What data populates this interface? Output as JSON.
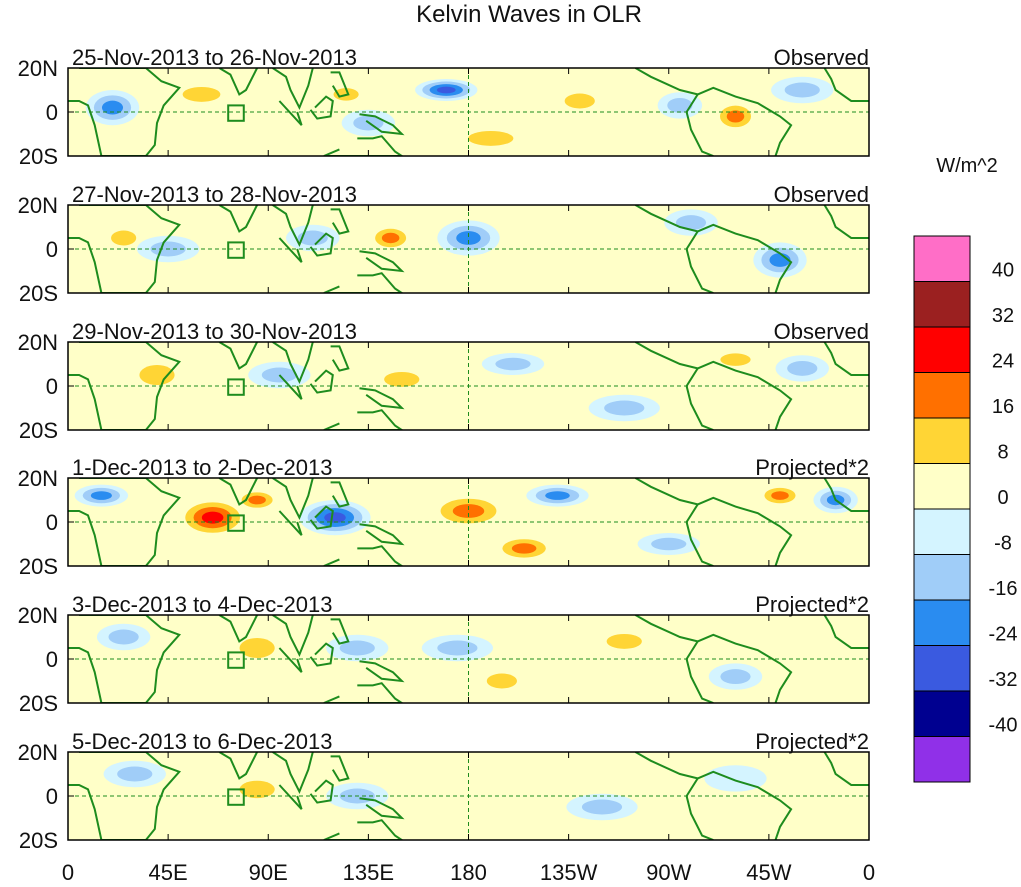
{
  "chart_data": {
    "type": "heatmap",
    "title": "Kelvin Waves in OLR",
    "units": "W/m^2",
    "x_ticks": [
      "0",
      "45E",
      "90E",
      "135E",
      "180",
      "135W",
      "90W",
      "45W",
      "0"
    ],
    "x_tick_lons": [
      0,
      45,
      90,
      135,
      180,
      225,
      270,
      315,
      360
    ],
    "y_ticks": [
      "20N",
      "0",
      "20S"
    ],
    "y_tick_lats": [
      20,
      0,
      -20
    ],
    "lat_range": [
      -20,
      20
    ],
    "lon_range": [
      0,
      360
    ],
    "colorbar": {
      "levels": [
        "40",
        "32",
        "24",
        "16",
        "8",
        "0",
        "-8",
        "-16",
        "-24",
        "-32",
        "-40"
      ],
      "colors": [
        "#ff6ec7",
        "#9b2020",
        "#ff0000",
        "#ff7000",
        "#ffd535",
        "#ffffc8",
        "#d4f4ff",
        "#a0cdf8",
        "#2a8cf0",
        "#3a5ae0",
        "#000090",
        "#9030e8"
      ]
    },
    "panels": [
      {
        "date_range": "25-Nov-2013 to 26-Nov-2013",
        "kind": "Observed",
        "blobs": [
          {
            "lon": 20,
            "lat": 2,
            "rx": 12,
            "ry": 8,
            "v": -20
          },
          {
            "lon": 60,
            "lat": 8,
            "rx": 15,
            "ry": 6,
            "v": 10
          },
          {
            "lon": 125,
            "lat": 8,
            "rx": 10,
            "ry": 5,
            "v": 12
          },
          {
            "lon": 135,
            "lat": -5,
            "rx": 12,
            "ry": 6,
            "v": -14
          },
          {
            "lon": 170,
            "lat": 10,
            "rx": 14,
            "ry": 5,
            "v": -28
          },
          {
            "lon": 190,
            "lat": -12,
            "rx": 18,
            "ry": 6,
            "v": 10
          },
          {
            "lon": 230,
            "lat": 5,
            "rx": 12,
            "ry": 6,
            "v": 10
          },
          {
            "lon": 275,
            "lat": 3,
            "rx": 10,
            "ry": 6,
            "v": -14
          },
          {
            "lon": 300,
            "lat": -2,
            "rx": 10,
            "ry": 7,
            "v": 24
          },
          {
            "lon": 330,
            "lat": 10,
            "rx": 14,
            "ry": 6,
            "v": -12
          }
        ]
      },
      {
        "date_range": "27-Nov-2013 to 28-Nov-2013",
        "kind": "Observed",
        "blobs": [
          {
            "lon": 25,
            "lat": 5,
            "rx": 10,
            "ry": 6,
            "v": 12
          },
          {
            "lon": 45,
            "lat": 0,
            "rx": 14,
            "ry": 6,
            "v": -16
          },
          {
            "lon": 110,
            "lat": 5,
            "rx": 12,
            "ry": 6,
            "v": -12
          },
          {
            "lon": 145,
            "lat": 5,
            "rx": 10,
            "ry": 6,
            "v": 18
          },
          {
            "lon": 180,
            "lat": 5,
            "rx": 14,
            "ry": 8,
            "v": -22
          },
          {
            "lon": 230,
            "lat": -8,
            "rx": 14,
            "ry": 7,
            "v": 8
          },
          {
            "lon": 280,
            "lat": 12,
            "rx": 12,
            "ry": 6,
            "v": -14
          },
          {
            "lon": 320,
            "lat": -5,
            "rx": 12,
            "ry": 8,
            "v": -20
          }
        ]
      },
      {
        "date_range": "29-Nov-2013 to 30-Nov-2013",
        "kind": "Observed",
        "blobs": [
          {
            "lon": 40,
            "lat": 5,
            "rx": 14,
            "ry": 8,
            "v": 14
          },
          {
            "lon": 95,
            "lat": 5,
            "rx": 14,
            "ry": 6,
            "v": -12
          },
          {
            "lon": 150,
            "lat": 3,
            "rx": 14,
            "ry": 6,
            "v": 16
          },
          {
            "lon": 200,
            "lat": 10,
            "rx": 14,
            "ry": 5,
            "v": -14
          },
          {
            "lon": 250,
            "lat": -10,
            "rx": 16,
            "ry": 6,
            "v": -10
          },
          {
            "lon": 300,
            "lat": 12,
            "rx": 12,
            "ry": 5,
            "v": 10
          },
          {
            "lon": 330,
            "lat": 8,
            "rx": 12,
            "ry": 6,
            "v": -16
          }
        ]
      },
      {
        "date_range": "1-Dec-2013 to 2-Dec-2013",
        "kind": "Projected*2",
        "blobs": [
          {
            "lon": 15,
            "lat": 12,
            "rx": 12,
            "ry": 5,
            "v": -18
          },
          {
            "lon": 65,
            "lat": 2,
            "rx": 16,
            "ry": 9,
            "v": 28
          },
          {
            "lon": 85,
            "lat": 10,
            "rx": 10,
            "ry": 5,
            "v": 18
          },
          {
            "lon": 120,
            "lat": 2,
            "rx": 16,
            "ry": 8,
            "v": -30
          },
          {
            "lon": 180,
            "lat": 5,
            "rx": 18,
            "ry": 8,
            "v": 22
          },
          {
            "lon": 205,
            "lat": -12,
            "rx": 14,
            "ry": 6,
            "v": 18
          },
          {
            "lon": 220,
            "lat": 12,
            "rx": 14,
            "ry": 5,
            "v": -20
          },
          {
            "lon": 270,
            "lat": -10,
            "rx": 14,
            "ry": 5,
            "v": -16
          },
          {
            "lon": 320,
            "lat": 12,
            "rx": 10,
            "ry": 5,
            "v": 18
          },
          {
            "lon": 345,
            "lat": 10,
            "rx": 10,
            "ry": 6,
            "v": -20
          }
        ]
      },
      {
        "date_range": "3-Dec-2013 to 4-Dec-2013",
        "kind": "Projected*2",
        "blobs": [
          {
            "lon": 25,
            "lat": 10,
            "rx": 12,
            "ry": 6,
            "v": -12
          },
          {
            "lon": 85,
            "lat": 5,
            "rx": 14,
            "ry": 8,
            "v": 12
          },
          {
            "lon": 130,
            "lat": 5,
            "rx": 14,
            "ry": 6,
            "v": -12
          },
          {
            "lon": 175,
            "lat": 5,
            "rx": 16,
            "ry": 6,
            "v": -16
          },
          {
            "lon": 195,
            "lat": -10,
            "rx": 12,
            "ry": 6,
            "v": 10
          },
          {
            "lon": 250,
            "lat": 8,
            "rx": 14,
            "ry": 6,
            "v": 9
          },
          {
            "lon": 300,
            "lat": -8,
            "rx": 12,
            "ry": 6,
            "v": -10
          }
        ]
      },
      {
        "date_range": "5-Dec-2013 to 6-Dec-2013",
        "kind": "Projected*2",
        "blobs": [
          {
            "lon": 30,
            "lat": 10,
            "rx": 14,
            "ry": 6,
            "v": -10
          },
          {
            "lon": 85,
            "lat": 3,
            "rx": 14,
            "ry": 7,
            "v": 12
          },
          {
            "lon": 130,
            "lat": 0,
            "rx": 14,
            "ry": 6,
            "v": -10
          },
          {
            "lon": 190,
            "lat": 5,
            "rx": 16,
            "ry": 6,
            "v": 8
          },
          {
            "lon": 240,
            "lat": -5,
            "rx": 16,
            "ry": 6,
            "v": -9
          },
          {
            "lon": 300,
            "lat": 8,
            "rx": 14,
            "ry": 6,
            "v": -8
          }
        ]
      }
    ]
  },
  "colors": {
    "coast": "#1e8c1e",
    "box": "#1e8c1e",
    "frame": "#000000"
  }
}
